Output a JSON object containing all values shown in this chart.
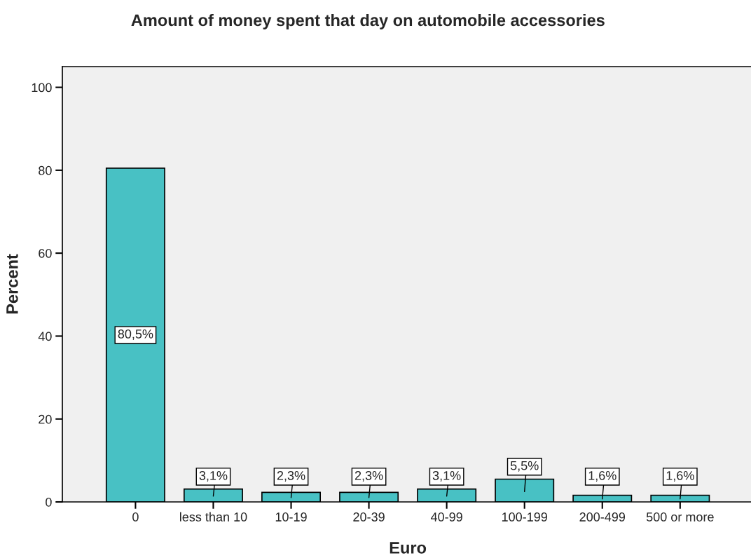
{
  "chart_data": {
    "type": "bar",
    "title": "Amount of money spent that day on automobile accessories",
    "xlabel": "Euro",
    "ylabel": "Percent",
    "categories": [
      "0",
      "less than 10",
      "10-19",
      "20-39",
      "40-99",
      "100-199",
      "200-499",
      "500 or more"
    ],
    "values": [
      80.5,
      3.1,
      2.3,
      2.3,
      3.1,
      5.5,
      1.6,
      1.6
    ],
    "value_labels": [
      "80,5%",
      "3,1%",
      "2,3%",
      "2,3%",
      "3,1%",
      "5,5%",
      "1,6%",
      "1,6%"
    ],
    "color": "#48c1c4",
    "ylim": [
      0,
      105
    ],
    "yticks": [
      0,
      20,
      40,
      60,
      80,
      100
    ],
    "grid": false,
    "legend": false
  }
}
